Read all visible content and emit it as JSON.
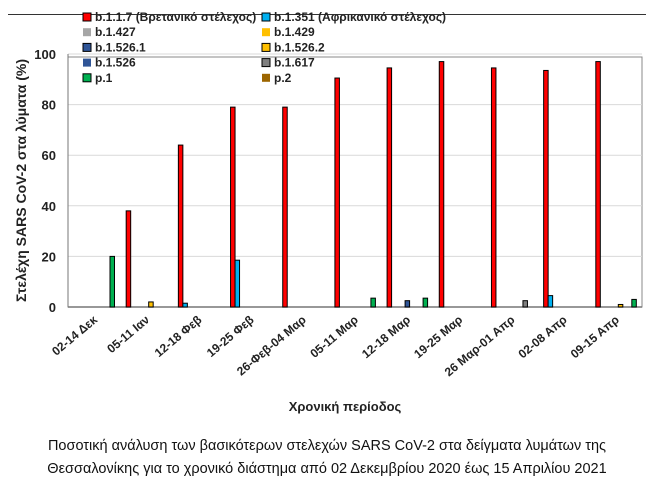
{
  "chart_data": {
    "type": "bar",
    "title": "",
    "xlabel": "Χρονική περίοδος",
    "ylabel": "Στελέχη SARS CoV-2 στα λύματα (%)",
    "ylim": [
      0,
      100
    ],
    "yticks": [
      0,
      20,
      40,
      60,
      80,
      100
    ],
    "grid": true,
    "legend_placement": "top-left",
    "categories": [
      "02-14 Δεκ",
      "05-11 Ιαν",
      "12-18 Φεβ",
      "19-25 Φεβ",
      "26-Φεβ-04 Μαρ",
      "05-11 Μαρ",
      "12-18 Μαρ",
      "19-25 Μαρ",
      "26 Μαρ-01 Απρ",
      "02-08 Απρ",
      "09-15 Απρ"
    ],
    "series": [
      {
        "name": "b.1.1.7 (Βρετανικό στέλεχος)",
        "color": "#ff0000",
        "border": true,
        "values": [
          0,
          38,
          64,
          79,
          79,
          90.5,
          94.5,
          97,
          94.5,
          93.5,
          97
        ]
      },
      {
        "name": "b.1.351 (Αφρικανικό στέλεχος)",
        "color": "#00b0f0",
        "border": true,
        "values": [
          0,
          0,
          1.5,
          18.5,
          0,
          0,
          0,
          0,
          0,
          4.5,
          0
        ]
      },
      {
        "name": "b.1.427",
        "color": "#a6a6a6",
        "border": false,
        "values": [
          0,
          0,
          0,
          0,
          0,
          0,
          0,
          0,
          0,
          0,
          0
        ]
      },
      {
        "name": "b.1.429",
        "color": "#ffc000",
        "border": false,
        "values": [
          0,
          0,
          0,
          0,
          0,
          0,
          0,
          0,
          0,
          0,
          0
        ]
      },
      {
        "name": "b.1.526.1",
        "color": "#2f5597",
        "border": true,
        "values": [
          0,
          0,
          0,
          0,
          0,
          0,
          2.5,
          0,
          0,
          0,
          0
        ]
      },
      {
        "name": "b.1.526.2",
        "color": "#ffc000",
        "border": true,
        "values": [
          0,
          2,
          0,
          0,
          0,
          0,
          0,
          0,
          0,
          0,
          1
        ]
      },
      {
        "name": "b.1.526",
        "color": "#2f5597",
        "border": false,
        "values": [
          0,
          0,
          0,
          0,
          0,
          0,
          0,
          0,
          0,
          0,
          0
        ]
      },
      {
        "name": "b.1.617",
        "color": "#7f7f7f",
        "border": true,
        "values": [
          0,
          0,
          0,
          0,
          0,
          0,
          0,
          0,
          2.5,
          0,
          0
        ]
      },
      {
        "name": "p.1",
        "color": "#00b050",
        "border": true,
        "values": [
          20,
          0,
          0,
          0,
          0,
          3.5,
          3.5,
          0,
          0,
          0,
          3
        ]
      },
      {
        "name": "p.2",
        "color": "#9c6500",
        "border": false,
        "values": [
          0,
          0,
          0,
          0,
          0,
          0,
          0,
          0,
          0,
          0,
          0
        ]
      }
    ]
  },
  "caption": {
    "line1": "Ποσοτική ανάλυση των βασικότερων στελεχών SARS CoV-2 στα δείγματα λυμάτων της",
    "line2": "Θεσσαλονίκης για το χρονικό διάστημα από 02 Δεκεμβρίου 2020 έως 15 Απριλίου 2021"
  }
}
